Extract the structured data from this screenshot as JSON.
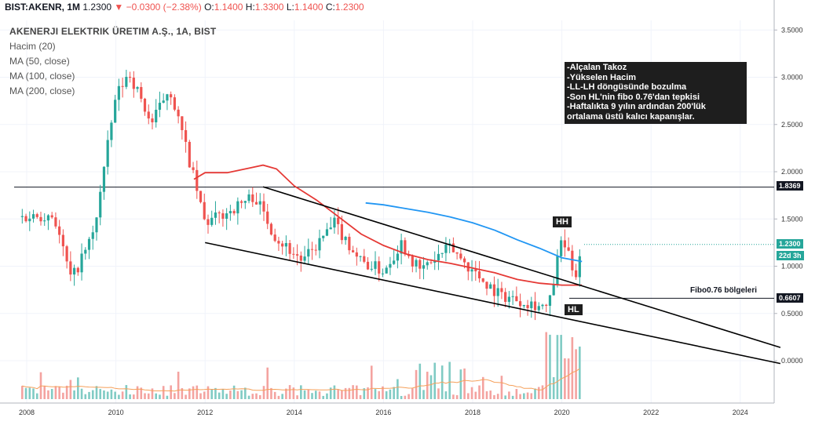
{
  "header": {
    "symbol": "BIST:AKENR, 1M",
    "last": "1.2300",
    "change": "−0.0300 (−2.38%)",
    "open_label": "O:",
    "open": "1.1400",
    "high_label": "H:",
    "high": "1.3300",
    "low_label": "L:",
    "low": "1.1400",
    "close_label": "C:",
    "close": "1.2300"
  },
  "legend": {
    "title": "AKENERJI ELEKTRIK ÜRETIM A.Ş., 1A, BIST",
    "volume": "Hacim (20)",
    "ma50": "MA (50, close)",
    "ma100": "MA (100, close)",
    "ma200": "MA (200, close)"
  },
  "annotations": {
    "note_lines": [
      "-Alçalan Takoz",
      "-Yükselen Hacim",
      "-LL-LH döngüsünde bozulma",
      "-Son HL'nin fibo 0.76'dan tepkisi",
      "-Haftalıkta 9 yılın ardından 200'lük",
      "ortalama üstü kalıcı kapanışlar."
    ],
    "hh": "HH",
    "hl": "HL",
    "fibo_label": "Fibo0.76 bölgeleri"
  },
  "colors": {
    "ma50": "#e53935",
    "ma100": "#2196f3",
    "up": "#26a69a",
    "down": "#ef5350",
    "vol_up": "#80cbc4",
    "vol_down": "#f4a3a0",
    "vol_ma": "#f5a05a"
  },
  "chart_data": {
    "type": "candlestick",
    "y_axis": {
      "ticks": [
        0.0,
        0.5,
        1.0,
        1.5,
        2.0,
        2.5,
        3.0,
        3.5
      ],
      "tick_labels": [
        "0.0000",
        "0.5000",
        "1.0000",
        "1.5000",
        "2.0000",
        "2.5000",
        "3.0000",
        "3.5000"
      ],
      "range": [
        -0.25,
        3.62
      ]
    },
    "x_axis": {
      "ticks": [
        2008,
        2010,
        2012,
        2014,
        2016,
        2018,
        2020,
        2022,
        2024
      ],
      "tick_labels": [
        "2008",
        "2010",
        "2012",
        "2014",
        "2016",
        "2018",
        "2020",
        "2022",
        "2024"
      ],
      "range": [
        2007.6,
        2025.0
      ]
    },
    "price_levels": [
      {
        "value": 1.8369,
        "label": "1.8369"
      },
      {
        "value": 0.6607,
        "label": "0.6607"
      }
    ],
    "last_price": {
      "value": 1.23,
      "label": "1.2300",
      "countdown": "22d 3h"
    },
    "key_points": [
      {
        "date": 2007.9,
        "close": 1.52
      },
      {
        "date": 2008.6,
        "close": 1.55
      },
      {
        "date": 2009.0,
        "close": 0.85
      },
      {
        "date": 2009.5,
        "close": 1.35
      },
      {
        "date": 2010.0,
        "close": 2.8
      },
      {
        "date": 2010.3,
        "close": 3.05
      },
      {
        "date": 2010.8,
        "close": 2.5
      },
      {
        "date": 2011.2,
        "close": 2.9
      },
      {
        "date": 2011.6,
        "close": 2.2
      },
      {
        "date": 2012.0,
        "close": 1.45
      },
      {
        "date": 2012.6,
        "close": 1.6
      },
      {
        "date": 2013.1,
        "close": 1.75
      },
      {
        "date": 2013.6,
        "close": 1.3
      },
      {
        "date": 2014.2,
        "close": 1.05
      },
      {
        "date": 2014.9,
        "close": 1.45
      },
      {
        "date": 2015.5,
        "close": 1.05
      },
      {
        "date": 2016.0,
        "close": 0.95
      },
      {
        "date": 2016.4,
        "close": 1.25
      },
      {
        "date": 2016.8,
        "close": 0.95
      },
      {
        "date": 2017.5,
        "close": 1.2
      },
      {
        "date": 2018.0,
        "close": 0.95
      },
      {
        "date": 2018.6,
        "close": 0.7
      },
      {
        "date": 2019.4,
        "close": 0.6
      },
      {
        "date": 2019.7,
        "close": 0.55
      },
      {
        "date": 2020.0,
        "close": 1.3
      },
      {
        "date": 2020.3,
        "close": 0.9
      },
      {
        "date": 2020.45,
        "close": 1.23
      }
    ],
    "ma50": [
      [
        2011.75,
        1.92
      ],
      [
        2012.0,
        1.99
      ],
      [
        2012.5,
        1.99
      ],
      [
        2013.0,
        2.04
      ],
      [
        2013.3,
        2.07
      ],
      [
        2013.6,
        2.03
      ],
      [
        2014.0,
        1.85
      ],
      [
        2014.5,
        1.7
      ],
      [
        2015.0,
        1.52
      ],
      [
        2015.5,
        1.34
      ],
      [
        2016.0,
        1.22
      ],
      [
        2016.5,
        1.13
      ],
      [
        2017.0,
        1.07
      ],
      [
        2017.5,
        1.03
      ],
      [
        2018.0,
        0.98
      ],
      [
        2018.5,
        0.93
      ],
      [
        2019.0,
        0.86
      ],
      [
        2019.5,
        0.82
      ],
      [
        2020.0,
        0.8
      ],
      [
        2020.45,
        0.8
      ]
    ],
    "ma100": [
      [
        2015.6,
        1.67
      ],
      [
        2016.0,
        1.65
      ],
      [
        2016.5,
        1.61
      ],
      [
        2017.0,
        1.57
      ],
      [
        2017.5,
        1.52
      ],
      [
        2018.0,
        1.46
      ],
      [
        2018.5,
        1.38
      ],
      [
        2019.0,
        1.28
      ],
      [
        2019.5,
        1.19
      ],
      [
        2020.0,
        1.09
      ],
      [
        2020.45,
        1.05
      ]
    ],
    "trendlines": [
      {
        "from": [
          2013.3,
          1.84
        ],
        "to": [
          2024.9,
          0.14
        ]
      },
      {
        "from": [
          2012.0,
          1.25
        ],
        "to": [
          2024.9,
          -0.03
        ]
      }
    ],
    "fibo_level": 0.6607
  }
}
